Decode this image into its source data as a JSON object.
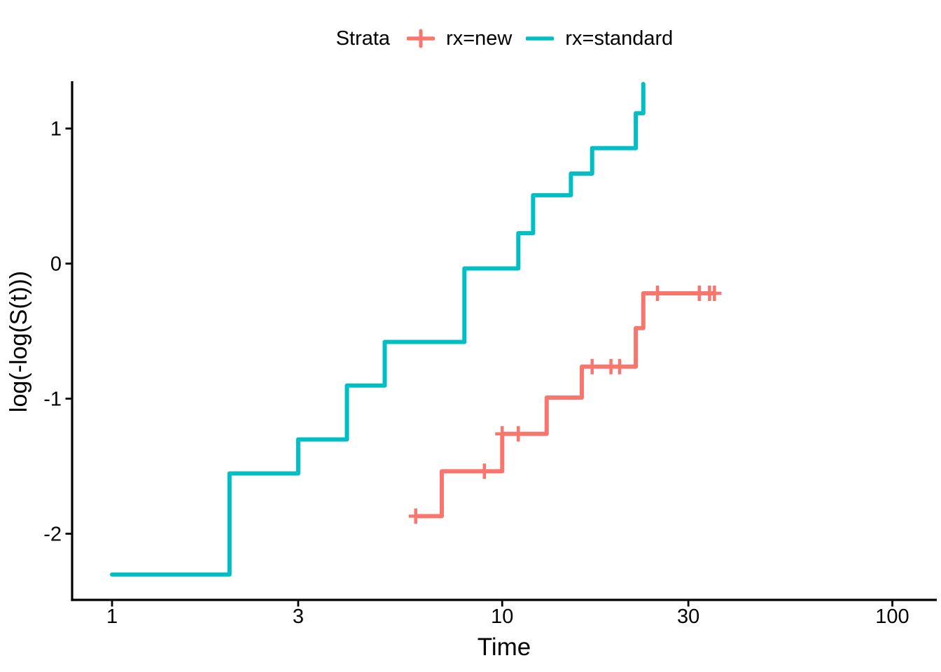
{
  "legend": {
    "title": "Strata",
    "entries": [
      {
        "label": "rx=new",
        "color": "#F8766D",
        "marker": "plus-on-line"
      },
      {
        "label": "rx=standard",
        "color": "#00BFC4",
        "marker": "line"
      }
    ]
  },
  "axes": {
    "x": {
      "label": "Time",
      "scale": "log10",
      "ticks": [
        1,
        3,
        10,
        30,
        100
      ]
    },
    "y": {
      "label": "log(-log(S(t)))",
      "scale": "linear",
      "ticks": [
        1,
        0,
        -1,
        -2
      ]
    }
  },
  "colors": {
    "series_new": "#F8766D",
    "series_standard": "#00BFC4",
    "axis": "#000000",
    "text": "#000000",
    "background": "#FFFFFF"
  },
  "chart_data": {
    "type": "line",
    "subtype": "kaplan-meier-step-cloglog",
    "title": "",
    "xlabel": "Time",
    "ylabel": "log(-log(S(t)))",
    "x_scale": "log10",
    "xlim": [
      0.79,
      130
    ],
    "ylim": [
      -2.49,
      1.34
    ],
    "x_ticks": [
      1,
      3,
      10,
      30,
      100
    ],
    "y_ticks": [
      1,
      0,
      -1,
      -2
    ],
    "grid": false,
    "legend_position": "top",
    "legend_title": "Strata",
    "series": [
      {
        "name": "rx=new",
        "color": "#F8766D",
        "points": [
          [
            6,
            -1.87
          ],
          [
            7,
            -1.538
          ],
          [
            10,
            -1.26
          ],
          [
            13,
            -0.992
          ],
          [
            16,
            -0.763
          ],
          [
            22,
            -0.478
          ],
          [
            23,
            -0.22
          ]
        ],
        "end_time": 35,
        "rises_to_infinity_at": null,
        "censor_marks": [
          [
            6,
            -1.87
          ],
          [
            9,
            -1.538
          ],
          [
            10,
            -1.26
          ],
          [
            11,
            -1.26
          ],
          [
            17,
            -0.763
          ],
          [
            19,
            -0.763
          ],
          [
            20,
            -0.763
          ],
          [
            25,
            -0.22
          ],
          [
            32,
            -0.22
          ],
          [
            32,
            -0.22
          ],
          [
            34,
            -0.22
          ],
          [
            35,
            -0.22
          ]
        ]
      },
      {
        "name": "rx=standard",
        "color": "#00BFC4",
        "points": [
          [
            1,
            -2.302
          ],
          [
            2,
            -1.554
          ],
          [
            3,
            -1.302
          ],
          [
            4,
            -0.903
          ],
          [
            5,
            -0.58
          ],
          [
            8,
            -0.036
          ],
          [
            11,
            0.225
          ],
          [
            12,
            0.506
          ],
          [
            15,
            0.666
          ],
          [
            17,
            0.855
          ],
          [
            22,
            1.113
          ]
        ],
        "end_time": 23,
        "rises_to_infinity_at": 23,
        "censor_marks": []
      }
    ]
  }
}
